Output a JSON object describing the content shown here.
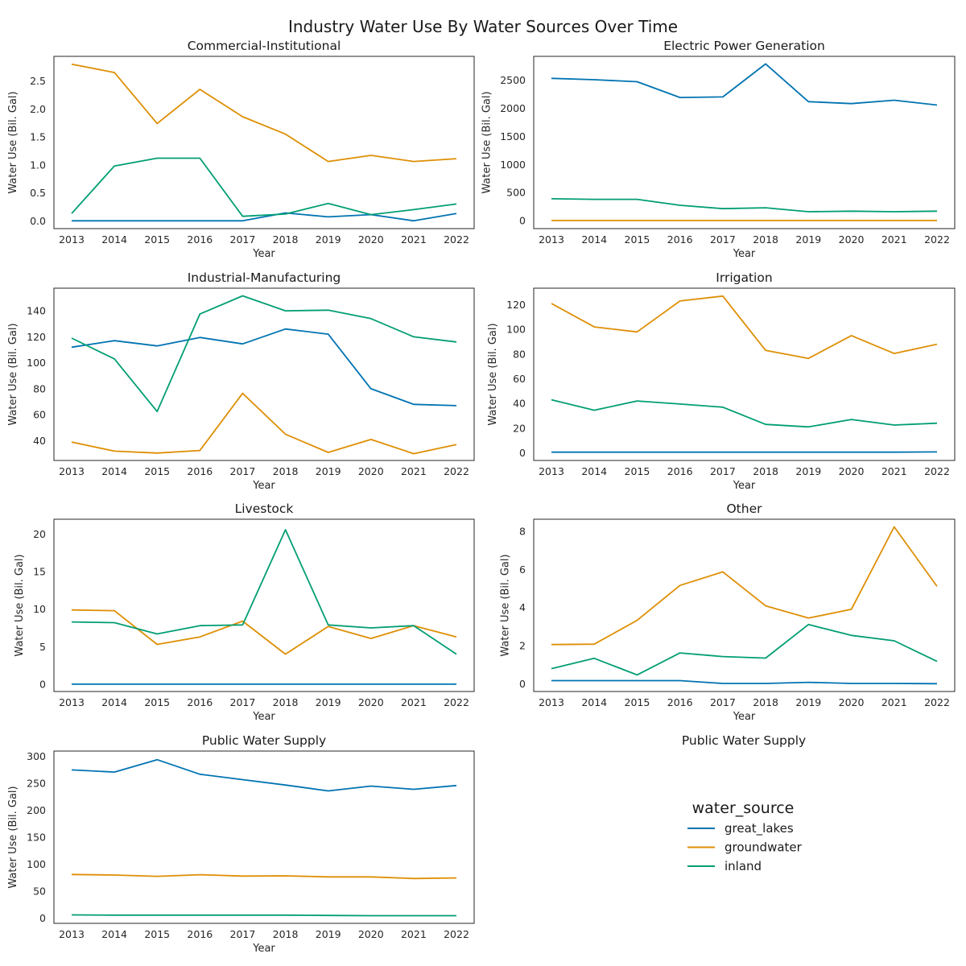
{
  "chart_data": {
    "type": "line",
    "title": "Industry Water Use By Water Sources Over Time",
    "legend": {
      "title": "water_source",
      "placement": "lower-right cell",
      "entries": [
        "great_lakes",
        "groundwater",
        "inland"
      ]
    },
    "colors": {
      "great_lakes": "#0173b2",
      "groundwater": "#de8f05",
      "inland": "#029e73"
    },
    "x": [
      2013,
      2014,
      2015,
      2016,
      2017,
      2018,
      2019,
      2020,
      2021,
      2022
    ],
    "xlabel": "Year",
    "ylabel": "Water Use (Bil. Gal)",
    "grid": false,
    "empty_panel_title": "Public Water Supply",
    "panels": [
      {
        "title": "Commercial-Institutional",
        "yticks": [
          0.0,
          0.5,
          1.0,
          1.5,
          2.0,
          2.5
        ],
        "ytick_labels": [
          "0.0",
          "0.5",
          "1.0",
          "1.5",
          "2.0",
          "2.5"
        ],
        "ylim": [
          -0.14,
          2.94
        ],
        "series": [
          {
            "name": "great_lakes",
            "values": [
              0.0,
              0.0,
              0.0,
              0.0,
              0.0,
              0.14,
              0.07,
              0.11,
              0.0,
              0.13
            ]
          },
          {
            "name": "groundwater",
            "values": [
              2.8,
              2.65,
              1.74,
              2.35,
              1.86,
              1.55,
              1.06,
              1.17,
              1.06,
              1.11
            ]
          },
          {
            "name": "inland",
            "values": [
              0.13,
              0.98,
              1.12,
              1.12,
              0.08,
              0.12,
              0.31,
              0.11,
              0.2,
              0.3
            ]
          }
        ]
      },
      {
        "title": "Electric Power Generation",
        "yticks": [
          0,
          500,
          1000,
          1500,
          2000,
          2500
        ],
        "ytick_labels": [
          "0",
          "500",
          "1000",
          "1500",
          "2000",
          "2500"
        ],
        "ylim": [
          -140,
          2920
        ],
        "series": [
          {
            "name": "great_lakes",
            "values": [
              2530,
              2505,
              2470,
              2190,
              2200,
              2785,
              2115,
              2080,
              2140,
              2055
            ]
          },
          {
            "name": "groundwater",
            "values": [
              5,
              5,
              5,
              5,
              5,
              5,
              5,
              5,
              5,
              5
            ]
          },
          {
            "name": "inland",
            "values": [
              390,
              380,
              380,
              275,
              215,
              230,
              160,
              170,
              160,
              170
            ]
          }
        ]
      },
      {
        "title": "Industrial-Manufacturing",
        "yticks": [
          40,
          60,
          80,
          100,
          120,
          140
        ],
        "ytick_labels": [
          "40",
          "60",
          "80",
          "100",
          "120",
          "140"
        ],
        "ylim": [
          24.8,
          157.4
        ],
        "series": [
          {
            "name": "great_lakes",
            "values": [
              112,
              117,
              113,
              119.5,
              114.5,
              126,
              122,
              80,
              68,
              67
            ]
          },
          {
            "name": "groundwater",
            "values": [
              39,
              32,
              30.5,
              32.5,
              76.5,
              45,
              31,
              41,
              30,
              37
            ]
          },
          {
            "name": "inland",
            "values": [
              119,
              103,
              62.5,
              137.5,
              151.5,
              140,
              140.5,
              134,
              120,
              116
            ]
          }
        ]
      },
      {
        "title": "Irrigation",
        "yticks": [
          0,
          20,
          40,
          60,
          80,
          100,
          120
        ],
        "ytick_labels": [
          "0",
          "20",
          "40",
          "60",
          "80",
          "100",
          "120"
        ],
        "ylim": [
          -6.2,
          133.4
        ],
        "series": [
          {
            "name": "great_lakes",
            "values": [
              0.5,
              0.5,
              0.5,
              0.5,
              0.5,
              0.5,
              0.5,
              0.5,
              0.5,
              0.7
            ]
          },
          {
            "name": "groundwater",
            "values": [
              121,
              102,
              98,
              123,
              127,
              83,
              76.5,
              95,
              80.5,
              88
            ]
          },
          {
            "name": "inland",
            "values": [
              43,
              34.5,
              42,
              39.5,
              37,
              23,
              21,
              27,
              22.5,
              24
            ]
          }
        ]
      },
      {
        "title": "Livestock",
        "yticks": [
          0,
          5,
          10,
          15,
          20
        ],
        "ytick_labels": [
          "0",
          "5",
          "10",
          "15",
          "20"
        ],
        "ylim": [
          -0.98,
          22.0
        ],
        "series": [
          {
            "name": "great_lakes",
            "values": [
              0,
              0,
              0,
              0,
              0,
              0,
              0,
              0,
              0,
              0
            ]
          },
          {
            "name": "groundwater",
            "values": [
              9.9,
              9.8,
              5.3,
              6.3,
              8.4,
              4.0,
              7.7,
              6.1,
              7.8,
              6.3
            ]
          },
          {
            "name": "inland",
            "values": [
              8.3,
              8.2,
              6.7,
              7.8,
              7.9,
              20.6,
              7.9,
              7.5,
              7.8,
              4.0
            ]
          }
        ]
      },
      {
        "title": "Other",
        "yticks": [
          0,
          2,
          4,
          6,
          8
        ],
        "ytick_labels": [
          "0",
          "2",
          "4",
          "6",
          "8"
        ],
        "ylim": [
          -0.4,
          8.63
        ],
        "series": [
          {
            "name": "great_lakes",
            "values": [
              0.17,
              0.17,
              0.17,
              0.17,
              0.02,
              0.02,
              0.08,
              0.02,
              0.02,
              0.01
            ]
          },
          {
            "name": "groundwater",
            "values": [
              2.06,
              2.08,
              3.33,
              5.16,
              5.87,
              4.09,
              3.45,
              3.91,
              8.23,
              5.11
            ]
          },
          {
            "name": "inland",
            "values": [
              0.8,
              1.34,
              0.47,
              1.62,
              1.43,
              1.35,
              3.11,
              2.54,
              2.26,
              1.18
            ]
          }
        ]
      },
      {
        "title": "Public Water Supply",
        "yticks": [
          0,
          50,
          100,
          150,
          200,
          250,
          300
        ],
        "ytick_labels": [
          "0",
          "50",
          "100",
          "150",
          "200",
          "250",
          "300"
        ],
        "ylim": [
          -9.7,
          310
        ],
        "series": [
          {
            "name": "great_lakes",
            "values": [
              275,
              271,
              294,
              267,
              257,
              247,
              236,
              245,
              239,
              246
            ]
          },
          {
            "name": "groundwater",
            "values": [
              81,
              80,
              77.5,
              80.5,
              78,
              78.5,
              76.5,
              76.5,
              73.5,
              74.5
            ]
          },
          {
            "name": "inland",
            "values": [
              6,
              5.5,
              5.5,
              5.5,
              5.5,
              5.5,
              5,
              4.5,
              4.5,
              4.5
            ]
          }
        ]
      }
    ]
  }
}
